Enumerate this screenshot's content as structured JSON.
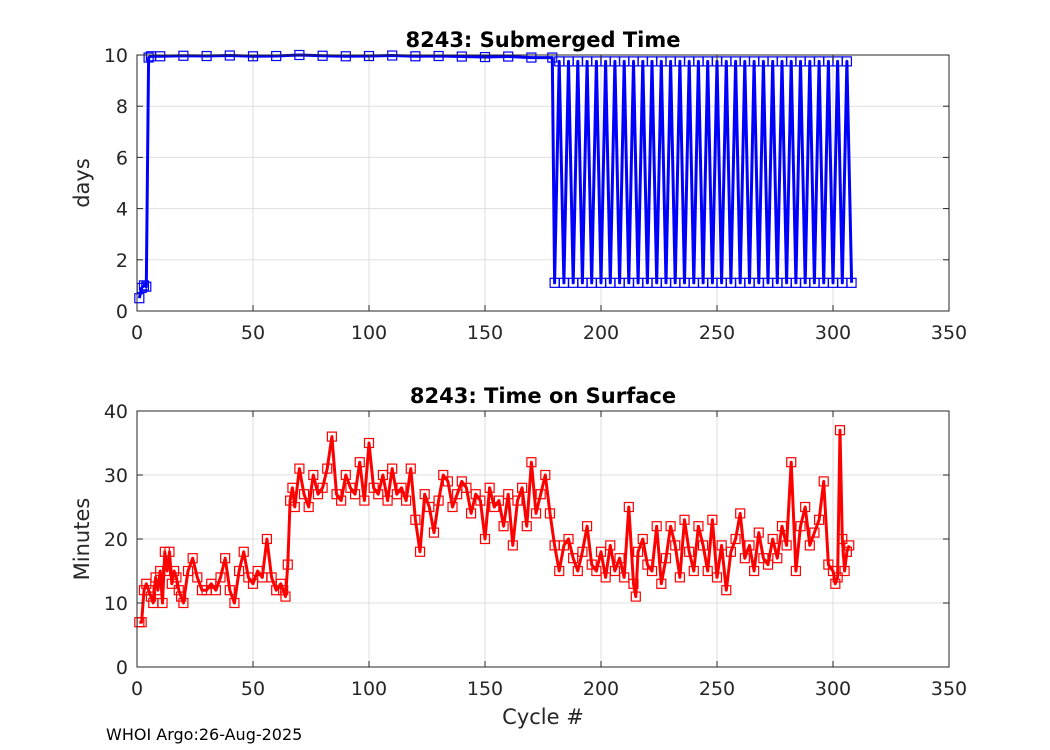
{
  "footer": "WHOI Argo:26-Aug-2025",
  "chart_data": [
    {
      "type": "line",
      "title": "8243: Submerged Time",
      "xlabel": "",
      "ylabel": "days",
      "xlim": [
        0,
        350
      ],
      "ylim": [
        0,
        10
      ],
      "xticks": [
        0,
        50,
        100,
        150,
        200,
        250,
        300,
        350
      ],
      "yticks": [
        0,
        2,
        4,
        6,
        8,
        10
      ],
      "grid": true,
      "marker": "square",
      "color": "#0000ff",
      "series": [
        {
          "x": [
            1,
            2,
            3,
            4,
            5,
            6,
            10,
            20,
            30,
            40,
            50,
            60,
            70,
            80,
            90,
            100,
            110,
            120,
            130,
            140,
            150,
            160,
            170,
            179
          ],
          "values": [
            0.5,
            0.9,
            1.0,
            0.95,
            9.9,
            9.95,
            9.95,
            9.97,
            9.96,
            9.98,
            9.95,
            9.96,
            10.0,
            9.97,
            9.95,
            9.96,
            9.98,
            9.95,
            9.96,
            9.94,
            9.92,
            9.94,
            9.9,
            9.9
          ]
        }
      ],
      "oscillation": {
        "x_start": 180,
        "x_end": 308,
        "period_cycles": 4,
        "high": 9.75,
        "low": 1.1
      }
    },
    {
      "type": "line",
      "title": "8243: Time on Surface",
      "xlabel": "Cycle #",
      "ylabel": "Minutes",
      "xlim": [
        0,
        350
      ],
      "ylim": [
        0,
        40
      ],
      "xticks": [
        0,
        50,
        100,
        150,
        200,
        250,
        300,
        350
      ],
      "yticks": [
        0,
        10,
        20,
        30,
        40
      ],
      "grid": true,
      "marker": "square",
      "color": "#ff0000",
      "series": [
        {
          "x": [
            1,
            2,
            3,
            4,
            5,
            6,
            7,
            8,
            9,
            10,
            11,
            12,
            13,
            14,
            15,
            16,
            17,
            18,
            19,
            20,
            22,
            24,
            26,
            28,
            30,
            32,
            34,
            36,
            38,
            40,
            42,
            44,
            46,
            48,
            50,
            52,
            54,
            56,
            58,
            60,
            62,
            63,
            64,
            65,
            66,
            67,
            68,
            70,
            72,
            74,
            76,
            78,
            80,
            82,
            84,
            86,
            88,
            90,
            92,
            94,
            96,
            98,
            100,
            102,
            104,
            106,
            108,
            110,
            112,
            114,
            116,
            118,
            120,
            122,
            124,
            126,
            128,
            130,
            132,
            134,
            136,
            138,
            140,
            142,
            144,
            146,
            148,
            150,
            152,
            154,
            156,
            158,
            160,
            162,
            164,
            166,
            168,
            170,
            172,
            174,
            176,
            178,
            180,
            182,
            184,
            186,
            188,
            190,
            192,
            194,
            196,
            198,
            200,
            202,
            204,
            206,
            208,
            210,
            212,
            214,
            215,
            216,
            218,
            220,
            222,
            224,
            226,
            228,
            230,
            232,
            234,
            236,
            238,
            240,
            242,
            244,
            246,
            248,
            250,
            252,
            254,
            256,
            258,
            260,
            262,
            264,
            266,
            268,
            270,
            272,
            274,
            276,
            278,
            280,
            282,
            284,
            286,
            288,
            290,
            292,
            294,
            296,
            298,
            300,
            301,
            302,
            303,
            304,
            305,
            306,
            307
          ],
          "values": [
            7,
            7,
            12,
            13,
            12,
            11,
            10,
            14,
            12,
            15,
            10,
            18,
            15,
            18,
            13,
            15,
            14,
            12,
            11,
            10,
            15,
            17,
            14,
            12,
            12,
            13,
            12,
            14,
            17,
            12,
            10,
            15,
            18,
            14,
            13,
            15,
            14,
            20,
            14,
            12,
            13,
            12,
            11,
            16,
            26,
            28,
            25,
            31,
            27,
            25,
            30,
            27,
            28,
            31,
            36,
            27,
            26,
            30,
            28,
            27,
            32,
            26,
            35,
            28,
            27,
            30,
            26,
            31,
            27,
            28,
            26,
            31,
            23,
            18,
            27,
            25,
            21,
            26,
            30,
            29,
            25,
            27,
            29,
            28,
            24,
            27,
            26,
            20,
            28,
            25,
            26,
            22,
            27,
            19,
            26,
            28,
            22,
            32,
            24,
            27,
            30,
            24,
            19,
            15,
            19,
            20,
            17,
            15,
            18,
            22,
            16,
            15,
            18,
            14,
            19,
            15,
            17,
            14,
            25,
            13,
            11,
            18,
            20,
            16,
            15,
            22,
            13,
            17,
            22,
            19,
            14,
            23,
            18,
            15,
            22,
            19,
            15,
            23,
            14,
            19,
            12,
            18,
            20,
            24,
            17,
            19,
            15,
            21,
            17,
            16,
            20,
            17,
            22,
            19,
            32,
            15,
            22,
            25,
            19,
            21,
            23,
            29,
            16,
            15,
            13,
            14,
            37,
            20,
            15,
            18,
            19
          ]
        }
      ]
    }
  ]
}
